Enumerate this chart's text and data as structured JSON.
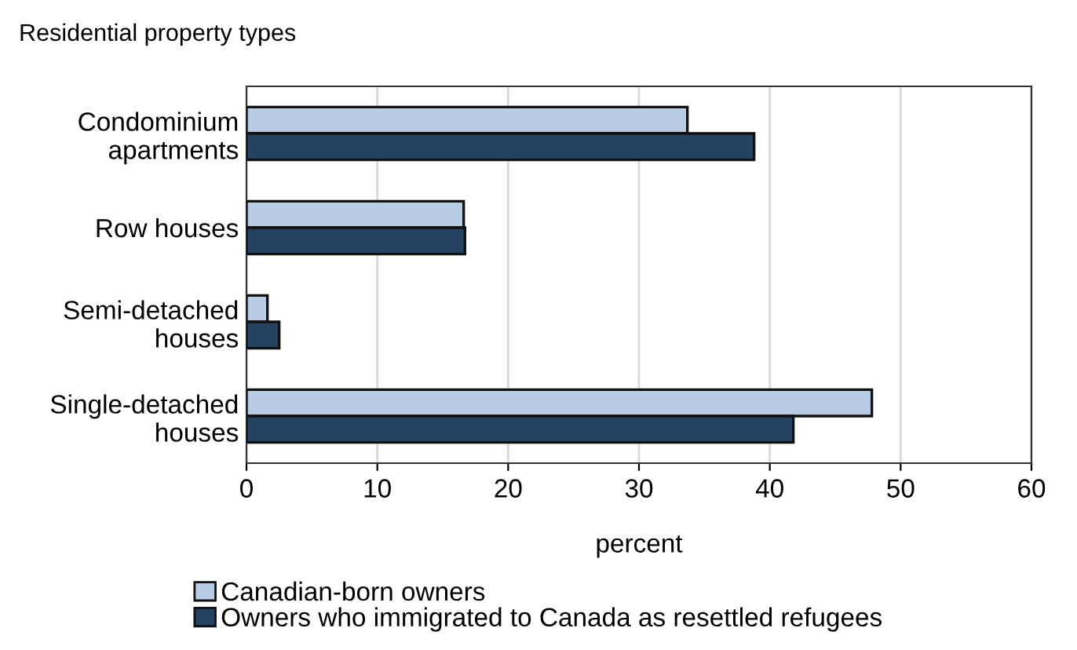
{
  "chart_data": {
    "type": "bar",
    "orientation": "horizontal",
    "title": "Residential property types",
    "xlabel": "percent",
    "categories": [
      "Condominium\napartments",
      "Row houses",
      "Semi-detached\nhouses",
      "Single-detached\nhouses"
    ],
    "series": [
      {
        "name": "Canadian-born owners",
        "color": "#b8cce4",
        "values": [
          33.7,
          16.6,
          1.6,
          47.8
        ]
      },
      {
        "name": "Owners who immigrated to Canada as resettled refugees",
        "color": "#264263",
        "values": [
          38.8,
          16.7,
          2.5,
          41.8
        ]
      }
    ],
    "xlim": [
      0,
      60
    ],
    "xticks": [
      0,
      10,
      20,
      30,
      40,
      50,
      60
    ],
    "grid": "x",
    "legend": "bottom"
  }
}
